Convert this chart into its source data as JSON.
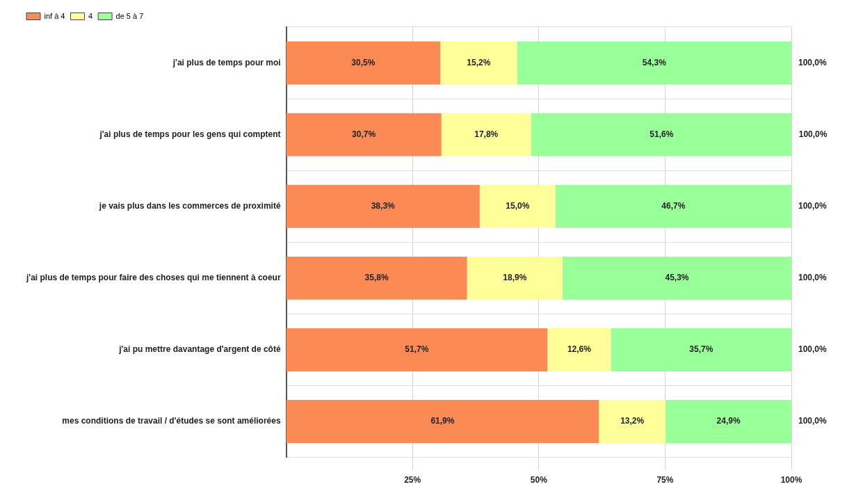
{
  "chart_data": {
    "type": "bar",
    "orientation": "horizontal",
    "stacked": true,
    "categories": [
      "j'ai plus de temps pour moi",
      "j'ai plus de temps pour les gens qui comptent",
      "je vais plus dans les commerces de proximité",
      "j'ai plus de temps pour faire des choses qui me tiennent à coeur",
      "j'ai pu mettre davantage d'argent de côté",
      "mes conditions de travail / d'études se sont améliorées"
    ],
    "series": [
      {
        "name": "inf à 4",
        "color": "#fb8a55",
        "values": [
          30.5,
          30.7,
          38.3,
          35.8,
          51.7,
          61.9
        ],
        "value_labels": [
          "30,5%",
          "30,7%",
          "38,3%",
          "35,8%",
          "51,7%",
          "61,9%"
        ]
      },
      {
        "name": "4",
        "color": "#ffff99",
        "values": [
          15.2,
          17.8,
          15.0,
          18.9,
          12.6,
          13.2
        ],
        "value_labels": [
          "15,2%",
          "17,8%",
          "15,0%",
          "18,9%",
          "12,6%",
          "13,2%"
        ]
      },
      {
        "name": "de 5 à 7",
        "color": "#99ff99",
        "values": [
          54.3,
          51.6,
          46.7,
          45.3,
          35.7,
          24.9
        ],
        "value_labels": [
          "54,3%",
          "51,6%",
          "46,7%",
          "45,3%",
          "35,7%",
          "24,9%"
        ]
      }
    ],
    "totals": [
      "100,0%",
      "100,0%",
      "100,0%",
      "100,0%",
      "100,0%",
      "100,0%"
    ],
    "xlim": [
      0,
      100
    ],
    "xticks": [
      {
        "value": 25,
        "label": "25%"
      },
      {
        "value": 50,
        "label": "50%"
      },
      {
        "value": 75,
        "label": "75%"
      },
      {
        "value": 100,
        "label": "100%"
      }
    ],
    "grid": true,
    "legend": "top left"
  }
}
